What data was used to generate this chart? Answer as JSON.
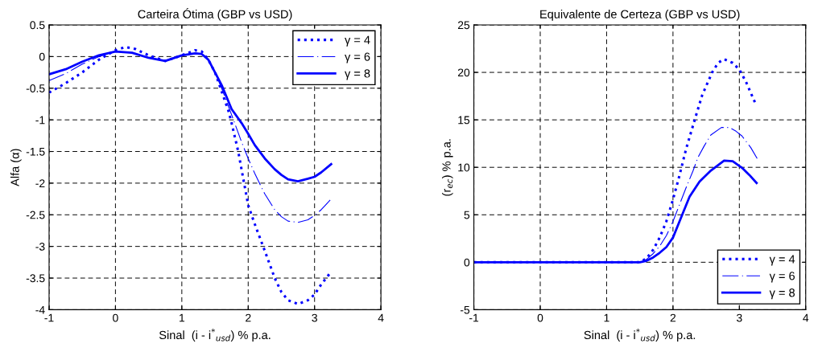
{
  "chart_data": [
    {
      "type": "line",
      "title": "Carteira Ótima (GBP vs USD)",
      "xlabel": "Sinal  (i - i$^{*}$$_{usd}$) % p.a.",
      "ylabel": "Alfa (α)",
      "xlim": [
        -1,
        4
      ],
      "xticks": [
        -1,
        0,
        1,
        2,
        3,
        4
      ],
      "ylim": [
        -4,
        0.5
      ],
      "yticks": [
        -4,
        -3.5,
        -3,
        -2.5,
        -2,
        -1.5,
        -1,
        -0.5,
        0,
        0.5
      ],
      "grid": true,
      "legend": "top right",
      "marker": "none",
      "series": [
        {
          "name": "γ = 4",
          "color": "#0000ff",
          "line_style": "dotted",
          "x": [
            -1,
            -0.75,
            -0.5,
            -0.25,
            0,
            0.15,
            0.3,
            0.5,
            0.75,
            1,
            1.2,
            1.3,
            1.4,
            1.5,
            1.6,
            1.7,
            1.75,
            1.85,
            2,
            2.1,
            2.25,
            2.4,
            2.5,
            2.6,
            2.75,
            2.9,
            3,
            3.1,
            3.25
          ],
          "values": [
            -0.57,
            -0.42,
            -0.25,
            -0.05,
            0.1,
            0.15,
            0.12,
            0.02,
            -0.07,
            0.02,
            0.1,
            0.08,
            -0.05,
            -0.25,
            -0.55,
            -0.85,
            -1.05,
            -1.5,
            -2.35,
            -2.65,
            -3.07,
            -3.5,
            -3.72,
            -3.85,
            -3.91,
            -3.85,
            -3.76,
            -3.6,
            -3.4
          ]
        },
        {
          "name": "γ = 6",
          "color": "#0000ff",
          "line_style": "dashed",
          "x": [
            -1,
            -0.75,
            -0.5,
            -0.25,
            0,
            0.25,
            0.5,
            0.75,
            1,
            1.2,
            1.3,
            1.4,
            1.5,
            1.6,
            1.75,
            1.9,
            2,
            2.1,
            2.25,
            2.4,
            2.5,
            2.6,
            2.75,
            2.9,
            3,
            3.1,
            3.25
          ],
          "values": [
            -0.38,
            -0.27,
            -0.12,
            0.0,
            0.08,
            0.06,
            -0.02,
            -0.07,
            0.02,
            0.05,
            0.04,
            -0.05,
            -0.25,
            -0.5,
            -0.92,
            -1.35,
            -1.61,
            -1.85,
            -2.17,
            -2.42,
            -2.53,
            -2.6,
            -2.62,
            -2.58,
            -2.51,
            -2.42,
            -2.25
          ]
        },
        {
          "name": "γ = 8",
          "color": "#0000ff",
          "line_style": "solid",
          "x": [
            -1,
            -0.75,
            -0.5,
            -0.25,
            0,
            0.25,
            0.5,
            0.75,
            1,
            1.2,
            1.3,
            1.4,
            1.5,
            1.6,
            1.75,
            1.9,
            2,
            2.1,
            2.25,
            2.4,
            2.5,
            2.6,
            2.75,
            2.9,
            3,
            3.1,
            3.25
          ],
          "values": [
            -0.28,
            -0.2,
            -0.08,
            0.02,
            0.08,
            0.06,
            -0.02,
            -0.07,
            0.02,
            0.05,
            0.04,
            -0.05,
            -0.25,
            -0.45,
            -0.83,
            -1.05,
            -1.22,
            -1.4,
            -1.61,
            -1.78,
            -1.87,
            -1.94,
            -1.97,
            -1.93,
            -1.9,
            -1.83,
            -1.7
          ]
        }
      ]
    },
    {
      "type": "line",
      "title": "Equivalente de Certeza (GBP vs USD)",
      "xlabel": "Sinal  (i - i$^{*}$$_{usd}$) % p.a.",
      "ylabel": "(r$_{ec}$) % p.a.",
      "xlim": [
        -1,
        4
      ],
      "xticks": [
        -1,
        0,
        1,
        2,
        3,
        4
      ],
      "ylim": [
        -5,
        25
      ],
      "yticks": [
        -5,
        0,
        5,
        10,
        15,
        20,
        25
      ],
      "grid": true,
      "legend": "bottom right",
      "marker": "none",
      "series": [
        {
          "name": "γ = 4",
          "color": "#0000ff",
          "line_style": "dotted",
          "x": [
            -1,
            0,
            1,
            1.5,
            1.6,
            1.7,
            1.8,
            1.9,
            2,
            2.1,
            2.2,
            2.34,
            2.44,
            2.59,
            2.68,
            2.77,
            2.9,
            3,
            3.1,
            3.25
          ],
          "values": [
            0,
            0,
            0,
            0,
            0.4,
            1.3,
            2.6,
            4.3,
            6.6,
            9.2,
            12,
            15.3,
            17.6,
            20,
            21,
            21.4,
            21,
            20.3,
            19,
            16.6
          ]
        },
        {
          "name": "γ = 6",
          "color": "#0000ff",
          "line_style": "dashed",
          "x": [
            -1,
            0,
            1,
            1.5,
            1.6,
            1.7,
            1.8,
            1.9,
            2,
            2.1,
            2.2,
            2.3,
            2.38,
            2.47,
            2.57,
            2.73,
            2.85,
            2.95,
            3.04,
            3.17,
            3.27
          ],
          "values": [
            0,
            0,
            0,
            0,
            0.3,
            0.9,
            1.7,
            2.8,
            4.3,
            6.1,
            7.9,
            9.6,
            11.1,
            12.25,
            13.4,
            14.2,
            14.2,
            13.8,
            13.3,
            12.1,
            10.9
          ]
        },
        {
          "name": "γ = 8",
          "color": "#0000ff",
          "line_style": "solid",
          "x": [
            -1,
            0,
            1,
            1.5,
            1.6,
            1.7,
            1.8,
            1.9,
            2,
            2.15,
            2.25,
            2.4,
            2.57,
            2.77,
            2.9,
            3.04,
            3.15,
            3.26
          ],
          "values": [
            0,
            0,
            0,
            0,
            0.15,
            0.5,
            1.0,
            1.6,
            2.6,
            5.2,
            6.9,
            8.5,
            9.65,
            10.7,
            10.65,
            9.95,
            9.2,
            8.35
          ]
        }
      ]
    }
  ]
}
